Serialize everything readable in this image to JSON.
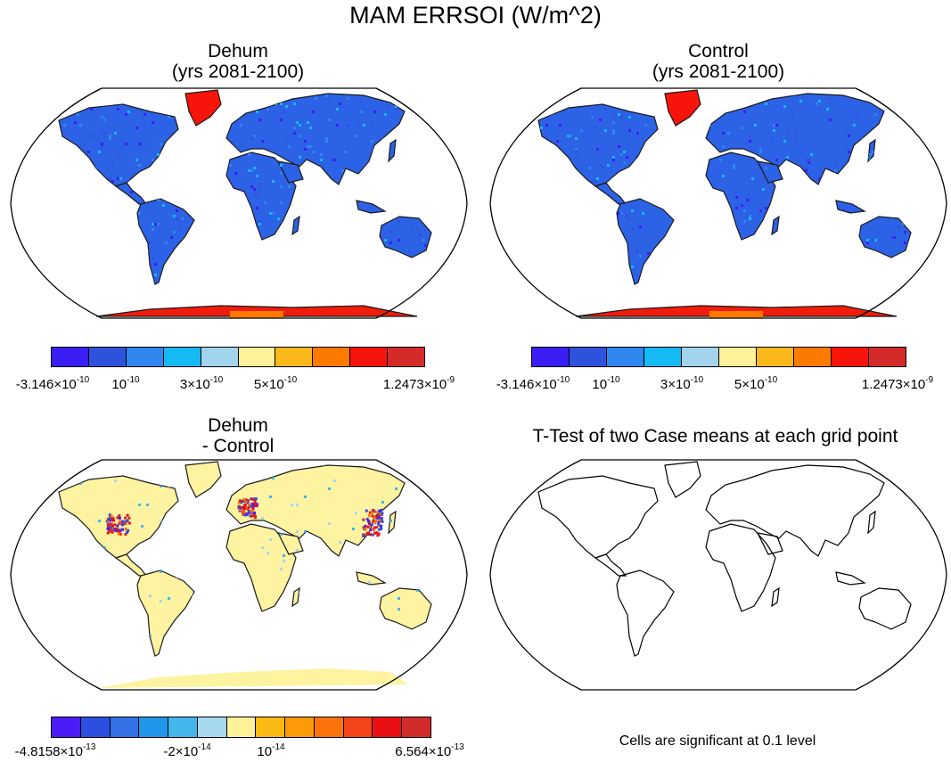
{
  "figure": {
    "title": "MAM ERRSOI (W/m^2)",
    "note": "Cells are significant at 0.1 level"
  },
  "colors": {
    "scale_main": [
      "#3a1ef5",
      "#2f52dd",
      "#2f86ee",
      "#15b9f3",
      "#a4d3ee",
      "#fdf199",
      "#fbb81a",
      "#fd7a00",
      "#f7140b",
      "#d42a29"
    ],
    "scale_diff": [
      "#4d1bf6",
      "#2d4fe1",
      "#3470e6",
      "#2296ea",
      "#45b6ec",
      "#a6d8f0",
      "#fdf199",
      "#f8ba13",
      "#fd9a08",
      "#fb730a",
      "#f5431a",
      "#ea0f13",
      "#d22b2b"
    ],
    "land": "#2c62e6",
    "antarctica": "#f11c0b",
    "diff_land": "#fdf3a1"
  },
  "chart_data": [
    {
      "type": "heatmap",
      "panel": "dehum",
      "title_line1": "Dehum",
      "title_line2": "(yrs 2081-2100)",
      "projection": "Robinson",
      "colorbar": {
        "min": -3.146e-10,
        "max": 1.2473e-09,
        "tick_labels": [
          {
            "mant": "-3.146×10",
            "exp": "-10"
          },
          {
            "mant": "10",
            "exp": "-10"
          },
          {
            "mant": "3×10",
            "exp": "-10"
          },
          {
            "mant": "5×10",
            "exp": "-10"
          },
          {
            "mant": "1.2473×10",
            "exp": "-9"
          }
        ]
      }
    },
    {
      "type": "heatmap",
      "panel": "control",
      "title_line1": "Control",
      "title_line2": "(yrs 2081-2100)",
      "projection": "Robinson",
      "colorbar": {
        "min": -3.146e-10,
        "max": 1.2473e-09,
        "tick_labels": [
          {
            "mant": "-3.146×10",
            "exp": "-10"
          },
          {
            "mant": "10",
            "exp": "-10"
          },
          {
            "mant": "3×10",
            "exp": "-10"
          },
          {
            "mant": "5×10",
            "exp": "-10"
          },
          {
            "mant": "1.2473×10",
            "exp": "-9"
          }
        ]
      }
    },
    {
      "type": "heatmap",
      "panel": "difference",
      "title_line1": "Dehum",
      "title_line2": "- Control",
      "projection": "Robinson",
      "colorbar": {
        "min": -4.8158e-13,
        "max": 6.564e-13,
        "tick_labels": [
          {
            "mant": "-4.8158×10",
            "exp": "-13"
          },
          {
            "mant": "-2×10",
            "exp": "-14"
          },
          {
            "mant": "10",
            "exp": "-14"
          },
          {
            "mant": "6.564×10",
            "exp": "-13"
          }
        ]
      }
    },
    {
      "type": "heatmap",
      "panel": "ttest",
      "title_line1": "T-Test of two Case means at each grid point",
      "projection": "Robinson",
      "significant_cells": 0
    }
  ]
}
